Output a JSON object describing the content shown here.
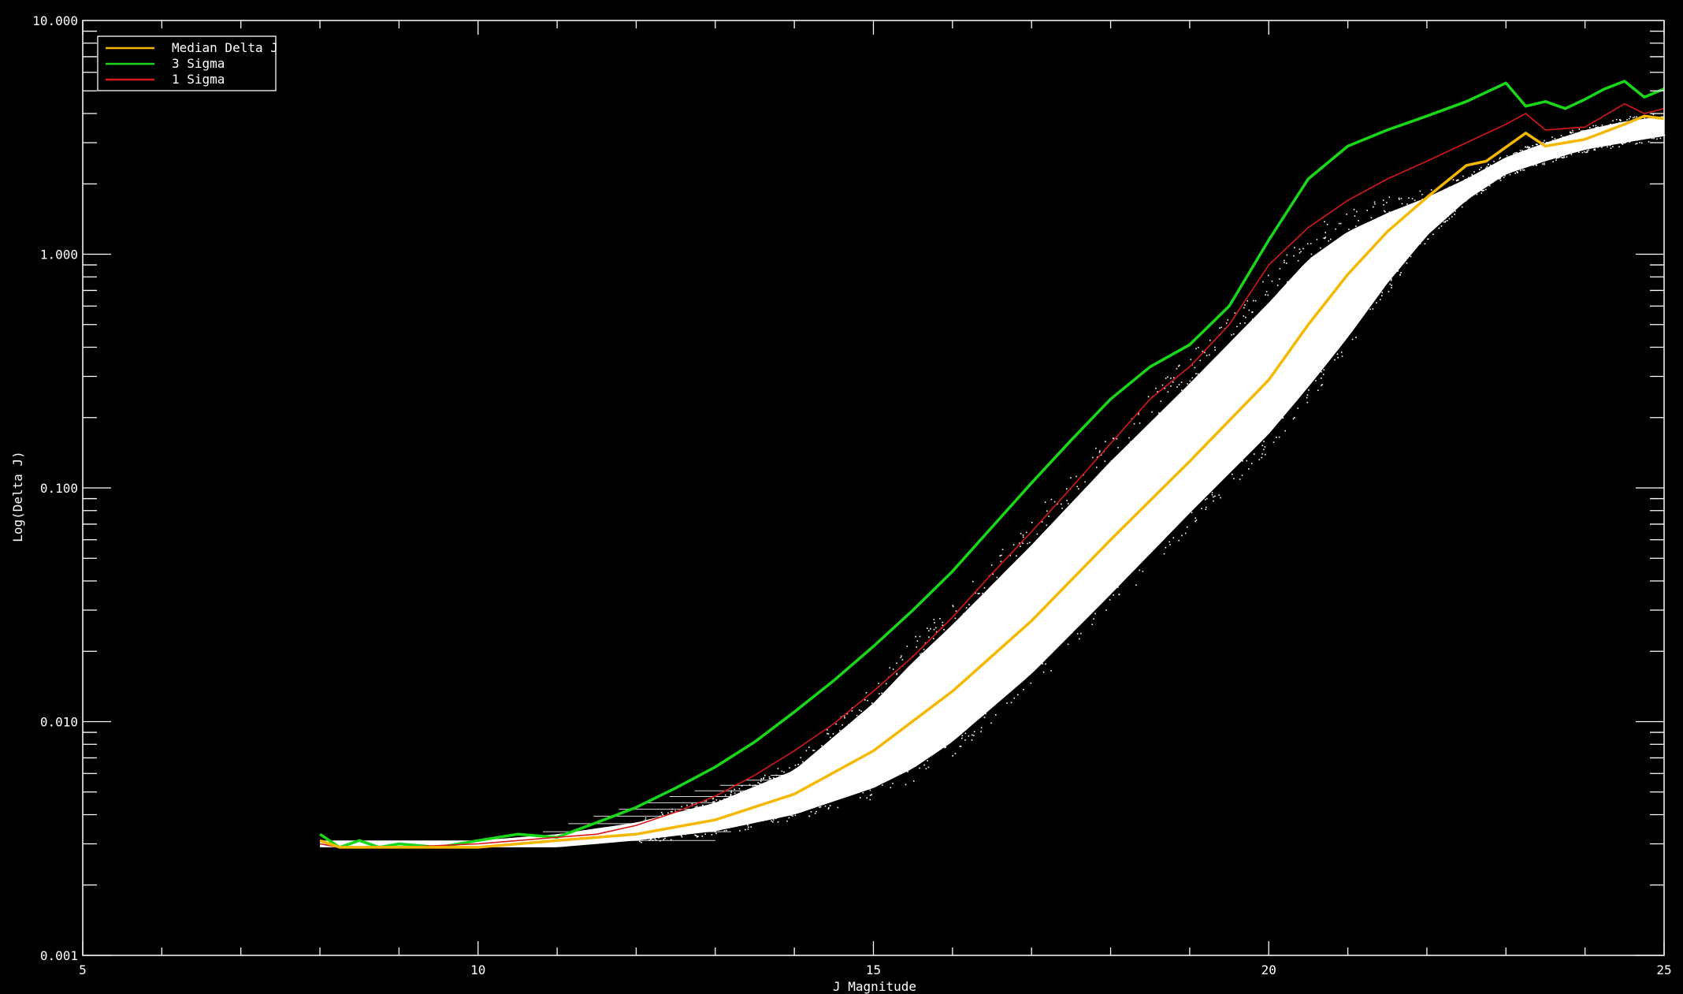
{
  "chart_data": {
    "type": "scatter",
    "title": "",
    "xlabel": "J Magnitude",
    "ylabel": "Log(Delta J)",
    "xlim": [
      5,
      25
    ],
    "ylim": [
      0.001,
      10.0
    ],
    "yscale": "log",
    "grid": false,
    "legend_position": "top-left",
    "x_ticks": [
      5,
      10,
      15,
      20,
      25
    ],
    "x_tick_labels": [
      "5",
      "10",
      "15",
      "20",
      "25"
    ],
    "y_ticks": [
      0.001,
      0.01,
      0.1,
      1.0,
      10.0
    ],
    "y_tick_labels": [
      "0.001",
      "0.010",
      "0.100",
      "1.000",
      "10.000"
    ],
    "colors": {
      "background": "#000000",
      "axes": "#ffffff",
      "points": "#ffffff",
      "median": "#f5b800",
      "three_sigma": "#18d818",
      "one_sigma": "#d81818"
    },
    "series": [
      {
        "name": "Median Delta J",
        "color": "#f5b800",
        "x": [
          8.0,
          8.25,
          9.0,
          10.0,
          11.0,
          12.0,
          13.0,
          14.0,
          15.0,
          16.0,
          17.0,
          18.0,
          19.0,
          20.0,
          20.5,
          21.0,
          21.5,
          22.0,
          22.5,
          22.75,
          23.25,
          23.5,
          24.0,
          24.5,
          24.75,
          25.0
        ],
        "y": [
          0.0031,
          0.0029,
          0.0029,
          0.0029,
          0.0031,
          0.0033,
          0.0038,
          0.0049,
          0.0075,
          0.0135,
          0.027,
          0.06,
          0.13,
          0.29,
          0.5,
          0.82,
          1.25,
          1.75,
          2.4,
          2.5,
          3.3,
          2.9,
          3.1,
          3.6,
          3.9,
          3.8
        ]
      },
      {
        "name": "3 Sigma",
        "color": "#18d818",
        "x": [
          8.0,
          8.25,
          8.5,
          8.75,
          9.0,
          9.5,
          10.0,
          10.5,
          11.0,
          11.5,
          12.0,
          12.5,
          13.0,
          13.5,
          14.0,
          14.5,
          15.0,
          15.5,
          16.0,
          16.5,
          17.0,
          17.5,
          18.0,
          18.5,
          19.0,
          19.5,
          20.0,
          20.5,
          21.0,
          21.5,
          22.0,
          22.5,
          23.0,
          23.25,
          23.5,
          23.75,
          24.0,
          24.25,
          24.5,
          24.75,
          25.0
        ],
        "y": [
          0.0033,
          0.0029,
          0.0031,
          0.0029,
          0.003,
          0.0029,
          0.0031,
          0.0033,
          0.0032,
          0.0037,
          0.0043,
          0.0052,
          0.0064,
          0.0082,
          0.011,
          0.015,
          0.021,
          0.03,
          0.044,
          0.068,
          0.105,
          0.16,
          0.24,
          0.33,
          0.41,
          0.6,
          1.15,
          2.1,
          2.9,
          3.4,
          3.9,
          4.5,
          5.4,
          4.3,
          4.5,
          4.2,
          4.6,
          5.1,
          5.5,
          4.7,
          5.1
        ]
      },
      {
        "name": "1 Sigma",
        "color": "#d81818",
        "x": [
          8.0,
          8.25,
          9.0,
          10.0,
          11.0,
          11.5,
          12.0,
          12.5,
          13.0,
          13.5,
          14.0,
          14.5,
          15.0,
          15.5,
          16.0,
          16.5,
          17.0,
          17.5,
          18.0,
          18.5,
          19.0,
          19.5,
          20.0,
          20.5,
          21.0,
          21.5,
          22.0,
          22.5,
          23.0,
          23.25,
          23.5,
          24.0,
          24.5,
          24.75,
          25.0
        ],
        "y": [
          0.003,
          0.0029,
          0.0029,
          0.003,
          0.0032,
          0.0033,
          0.0036,
          0.0041,
          0.0048,
          0.0059,
          0.0075,
          0.0098,
          0.0135,
          0.019,
          0.028,
          0.043,
          0.065,
          0.1,
          0.155,
          0.24,
          0.33,
          0.5,
          0.9,
          1.3,
          1.7,
          2.1,
          2.5,
          3.0,
          3.6,
          4.0,
          3.4,
          3.5,
          4.4,
          4.0,
          4.2
        ]
      }
    ],
    "scatter_envelope": {
      "x": [
        8.0,
        9.0,
        10.0,
        11.0,
        12.0,
        13.0,
        14.0,
        15.0,
        15.5,
        16.0,
        17.0,
        18.0,
        19.0,
        20.0,
        20.5,
        21.0,
        21.5,
        22.0,
        22.5,
        23.0,
        23.5,
        24.0,
        24.5,
        25.0
      ],
      "y_low": [
        0.0029,
        0.0029,
        0.0029,
        0.0029,
        0.0031,
        0.0034,
        0.004,
        0.0052,
        0.0063,
        0.0082,
        0.016,
        0.035,
        0.078,
        0.17,
        0.27,
        0.44,
        0.75,
        1.2,
        1.7,
        2.2,
        2.5,
        2.8,
        3.0,
        3.2
      ],
      "y_high": [
        0.0031,
        0.0031,
        0.0031,
        0.0033,
        0.0037,
        0.0045,
        0.0062,
        0.012,
        0.018,
        0.026,
        0.057,
        0.13,
        0.28,
        0.62,
        0.95,
        1.25,
        1.5,
        1.75,
        2.1,
        2.6,
        3.0,
        3.4,
        3.7,
        3.9
      ]
    }
  }
}
